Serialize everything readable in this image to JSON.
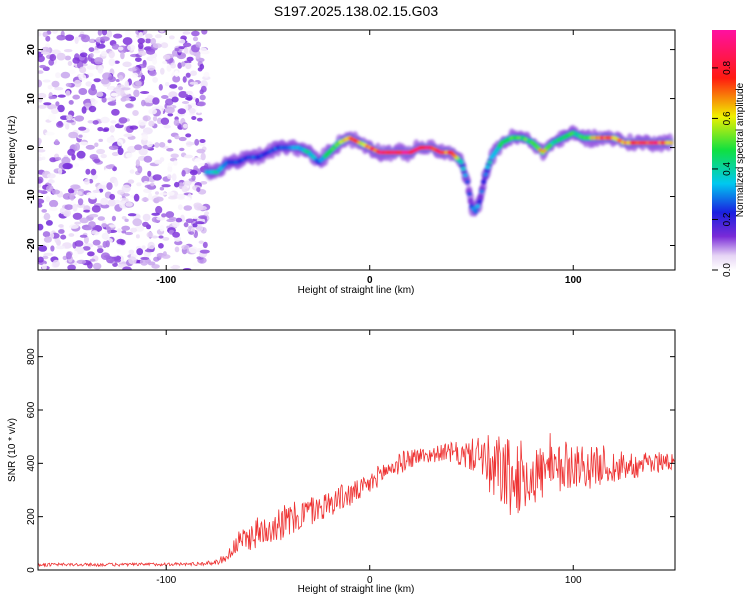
{
  "title": "S197.2025.138.02.15.G03",
  "chart_data": [
    {
      "type": "heatmap",
      "xlabel": "Height of straight line (km)",
      "ylabel": "Frequency (Hz)",
      "xlim": [
        -163,
        150
      ],
      "ylim": [
        -25,
        24
      ],
      "x_ticks": [
        -100,
        0,
        100
      ],
      "y_ticks": [
        -20,
        -10,
        0,
        10,
        20
      ],
      "grid": false,
      "colorbar": {
        "label": "Normalized spectral amplitude",
        "range": [
          0,
          0.95
        ],
        "ticks": [
          "0.0",
          "0.2",
          "0.4",
          "0.6",
          "0.8"
        ],
        "colormap": "rainbow (purple-blue-cyan-green-yellow-red-magenta)"
      },
      "noise_region": {
        "x_from": -163,
        "x_to": -80,
        "amplitude": [
          0.0,
          0.15
        ]
      },
      "ridge": {
        "x": [
          -80,
          -75,
          -70,
          -65,
          -60,
          -55,
          -50,
          -45,
          -40,
          -35,
          -30,
          -25,
          -20,
          -15,
          -10,
          -5,
          0,
          5,
          10,
          15,
          20,
          25,
          30,
          35,
          40,
          45,
          48,
          50,
          52,
          54,
          56,
          58,
          60,
          65,
          70,
          75,
          80,
          85,
          90,
          95,
          100,
          105,
          110,
          115,
          120,
          125,
          130,
          135,
          140,
          145,
          148
        ],
        "frequency": [
          -5,
          -5,
          -3,
          -3,
          -2,
          -2,
          -1,
          0,
          0,
          0,
          -1,
          -3,
          -1,
          1,
          2,
          1,
          0,
          -1,
          -1,
          -1,
          -1,
          0,
          0,
          -1,
          -1,
          -3,
          -7,
          -12,
          -13,
          -11,
          -7,
          -4,
          -2,
          1,
          2,
          2,
          1,
          -1,
          1,
          2,
          3,
          2,
          2,
          2,
          2,
          1,
          1,
          1,
          1,
          1,
          1
        ],
        "amplitude": [
          0.35,
          0.4,
          0.3,
          0.3,
          0.25,
          0.3,
          0.25,
          0.3,
          0.3,
          0.35,
          0.45,
          0.3,
          0.5,
          0.6,
          0.8,
          0.7,
          0.8,
          0.9,
          0.9,
          0.95,
          0.9,
          0.9,
          0.9,
          0.85,
          0.8,
          0.45,
          0.25,
          0.3,
          0.35,
          0.3,
          0.3,
          0.45,
          0.35,
          0.55,
          0.6,
          0.5,
          0.55,
          0.7,
          0.45,
          0.5,
          0.5,
          0.55,
          0.7,
          0.8,
          0.7,
          0.75,
          0.8,
          0.85,
          0.9,
          0.8,
          0.7
        ]
      }
    },
    {
      "type": "line",
      "xlabel": "Height of straight line (km)",
      "ylabel": "SNR (10 * v/v)",
      "xlim": [
        -163,
        150
      ],
      "ylim": [
        0,
        900
      ],
      "x_ticks": [
        -100,
        0,
        100
      ],
      "y_ticks": [
        0,
        200,
        400,
        600,
        800
      ],
      "grid": false,
      "series": [
        {
          "color": "#ee3333",
          "x": [
            -163,
            -140,
            -120,
            -100,
            -90,
            -80,
            -75,
            -70,
            -65,
            -60,
            -55,
            -50,
            -45,
            -40,
            -35,
            -30,
            -25,
            -20,
            -15,
            -10,
            -5,
            0,
            5,
            10,
            15,
            20,
            25,
            30,
            35,
            40,
            45,
            50,
            55,
            60,
            65,
            70,
            75,
            80,
            85,
            90,
            95,
            100,
            105,
            110,
            115,
            120,
            125,
            130,
            135,
            140,
            145,
            150
          ],
          "mean": [
            20,
            20,
            20,
            22,
            22,
            25,
            30,
            50,
            100,
            120,
            140,
            160,
            180,
            180,
            200,
            220,
            230,
            250,
            270,
            280,
            300,
            320,
            360,
            380,
            400,
            420,
            430,
            430,
            440,
            440,
            430,
            430,
            440,
            350,
            380,
            320,
            360,
            350,
            370,
            360,
            380,
            400,
            390,
            380,
            400,
            380,
            400,
            390,
            400,
            400,
            410,
            410
          ],
          "spread": [
            6,
            6,
            6,
            6,
            6,
            8,
            10,
            20,
            40,
            50,
            60,
            60,
            70,
            70,
            60,
            60,
            50,
            50,
            50,
            50,
            40,
            40,
            40,
            40,
            40,
            40,
            30,
            30,
            30,
            40,
            50,
            60,
            80,
            150,
            140,
            150,
            130,
            120,
            110,
            100,
            100,
            90,
            80,
            80,
            70,
            70,
            60,
            50,
            40,
            40,
            40,
            40
          ]
        }
      ]
    }
  ]
}
